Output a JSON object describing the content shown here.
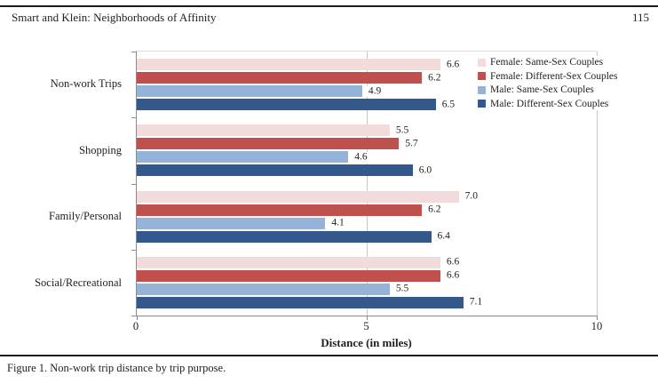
{
  "header": {
    "title": "Smart and Klein: Neighborhoods of Affinity",
    "page_number": "115"
  },
  "chart_data": {
    "type": "bar",
    "orientation": "horizontal",
    "xlabel": "Distance (in miles)",
    "xlim": [
      0,
      10
    ],
    "xticks": [
      0,
      5,
      10
    ],
    "grid": "vertical gridlines at ticks, drawn behind bars",
    "legend_position": "top-right",
    "value_labels": "end of each bar, one decimal",
    "categories": [
      "Non-work Trips",
      "Shopping",
      "Family/Personal",
      "Social/Recreational"
    ],
    "series": [
      {
        "name": "Female: Same-Sex Couples",
        "color": "#f2dcdb",
        "values": [
          6.6,
          5.5,
          7.0,
          6.6
        ]
      },
      {
        "name": "Female: Different-Sex Couples",
        "color": "#c0504d",
        "values": [
          6.2,
          5.7,
          6.2,
          6.6
        ]
      },
      {
        "name": "Male: Same-Sex Couples",
        "color": "#95b3d7",
        "values": [
          4.9,
          4.6,
          4.1,
          5.5
        ]
      },
      {
        "name": "Male: Different-Sex Couples",
        "color": "#34578c",
        "values": [
          6.5,
          6.0,
          6.4,
          7.1
        ]
      }
    ]
  },
  "caption": "Figure 1. Non-work trip distance by trip purpose.",
  "colors": {
    "axis": "#8c8c8c",
    "gridline": "#c9c9c9",
    "rule": "#1c1c1c",
    "text": "#1f1f1f"
  }
}
